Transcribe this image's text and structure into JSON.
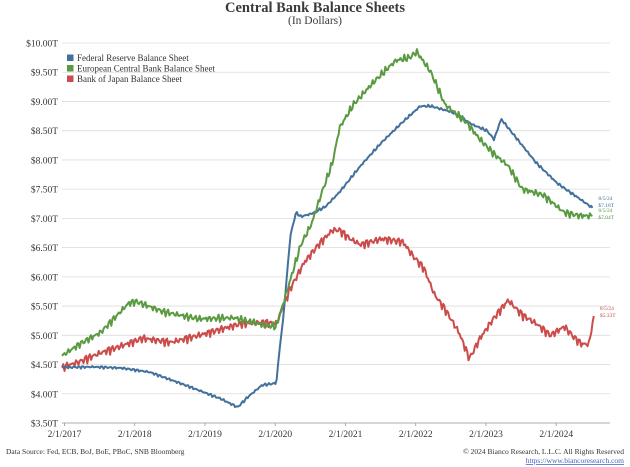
{
  "chart_data": {
    "type": "line",
    "title": "Central Bank Balance Sheets",
    "subtitle": "(In Dollars)",
    "xlabel": "",
    "ylabel": "",
    "x_range": [
      2017.05,
      2024.85
    ],
    "ylim": [
      3.5,
      10.0
    ],
    "y_ticks": [
      3.5,
      4.0,
      4.5,
      5.0,
      5.5,
      6.0,
      6.5,
      7.0,
      7.5,
      8.0,
      8.5,
      9.0,
      9.5,
      10.0
    ],
    "y_tick_labels": [
      "$3.50T",
      "$4.00T",
      "$4.50T",
      "$5.00T",
      "$5.50T",
      "$6.00T",
      "$6.50T",
      "$7.00T",
      "$7.50T",
      "$8.00T",
      "$8.50T",
      "$9.00T",
      "$9.50T",
      "$10.00T"
    ],
    "x_ticks": [
      2017.085,
      2018.085,
      2019.085,
      2020.085,
      2021.085,
      2022.085,
      2023.085,
      2024.085
    ],
    "x_tick_labels": [
      "2/1/2017",
      "2/1/2018",
      "2/1/2019",
      "2/1/2020",
      "2/1/2021",
      "2/1/2022",
      "2/1/2023",
      "2/1/2024"
    ],
    "grid": true,
    "legend": "top-left",
    "series": [
      {
        "name": "Federal Reserve Balance Sheet",
        "color": "#44709c",
        "x": [
          2017.05,
          2017.5,
          2017.9,
          2018.3,
          2018.8,
          2019.3,
          2019.55,
          2019.7,
          2019.9,
          2020.1,
          2020.15,
          2020.2,
          2020.25,
          2020.3,
          2020.38,
          2020.45,
          2020.6,
          2020.8,
          2021.0,
          2021.3,
          2021.6,
          2021.9,
          2022.15,
          2022.3,
          2022.6,
          2022.9,
          2023.1,
          2023.2,
          2023.3,
          2023.5,
          2023.8,
          2024.1,
          2024.4,
          2024.6
        ],
        "y": [
          4.45,
          4.46,
          4.44,
          4.37,
          4.15,
          3.92,
          3.77,
          3.95,
          4.15,
          4.18,
          4.8,
          5.3,
          6.0,
          6.7,
          7.1,
          7.03,
          7.08,
          7.2,
          7.45,
          7.9,
          8.3,
          8.65,
          8.92,
          8.92,
          8.82,
          8.6,
          8.5,
          8.35,
          8.7,
          8.4,
          7.95,
          7.6,
          7.35,
          7.18
        ]
      },
      {
        "name": "European Central Bank Balance Sheet",
        "color": "#5a9a41",
        "x": [
          2017.05,
          2017.3,
          2017.6,
          2017.8,
          2018.0,
          2018.1,
          2018.5,
          2019.0,
          2019.5,
          2019.9,
          2020.1,
          2020.3,
          2020.45,
          2020.6,
          2020.75,
          2020.9,
          2021.0,
          2021.2,
          2021.5,
          2021.8,
          2022.0,
          2022.1,
          2022.3,
          2022.5,
          2022.8,
          2023.0,
          2023.2,
          2023.4,
          2023.6,
          2023.9,
          2024.2,
          2024.4,
          2024.6
        ],
        "y": [
          4.65,
          4.85,
          5.05,
          5.3,
          5.55,
          5.58,
          5.4,
          5.28,
          5.3,
          5.18,
          5.15,
          5.95,
          6.55,
          6.9,
          7.45,
          7.95,
          8.55,
          8.95,
          9.35,
          9.7,
          9.75,
          9.85,
          9.5,
          8.95,
          8.65,
          8.35,
          8.1,
          7.9,
          7.5,
          7.4,
          7.1,
          7.05,
          7.04
        ]
      },
      {
        "name": "Bank of Japan Balance Sheet",
        "color": "#cc4b4b",
        "x": [
          2017.05,
          2017.3,
          2017.6,
          2017.9,
          2018.2,
          2018.6,
          2019.0,
          2019.3,
          2019.6,
          2019.9,
          2020.1,
          2020.3,
          2020.5,
          2020.7,
          2020.9,
          2021.0,
          2021.15,
          2021.3,
          2021.6,
          2021.9,
          2022.05,
          2022.2,
          2022.35,
          2022.5,
          2022.7,
          2022.85,
          2023.0,
          2023.2,
          2023.4,
          2023.6,
          2023.8,
          2024.0,
          2024.2,
          2024.35,
          2024.45,
          2024.55,
          2024.62
        ],
        "y": [
          4.45,
          4.55,
          4.7,
          4.82,
          4.95,
          4.88,
          5.0,
          5.1,
          5.2,
          5.22,
          5.2,
          5.8,
          6.25,
          6.55,
          6.8,
          6.8,
          6.65,
          6.55,
          6.65,
          6.6,
          6.35,
          6.15,
          5.7,
          5.45,
          5.05,
          4.6,
          4.95,
          5.3,
          5.6,
          5.35,
          5.2,
          5.0,
          5.15,
          4.95,
          4.85,
          4.85,
          5.33
        ]
      }
    ],
    "annotations": [
      {
        "series": 0,
        "date": "8/5/24",
        "value": "$7.18T"
      },
      {
        "series": 1,
        "date": "8/5/24",
        "value": "$7.04T"
      },
      {
        "series": 2,
        "date": "8/5/24",
        "value": "$5.33T"
      }
    ]
  },
  "footer": {
    "source": "Data Source: Fed, ECB, BoJ, BoE, PBoC, SNB Bloomberg",
    "copyright": "© 2024 Bianco Research, L.L.C. All Rights Reserved",
    "url": "https://www.biancoresearch.com"
  }
}
